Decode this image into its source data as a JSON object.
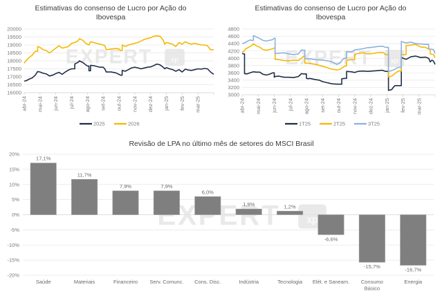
{
  "colors": {
    "series_dark": "#1f2d45",
    "series_yellow": "#f5b800",
    "series_lightblue": "#8db0dd",
    "bar": "#7f7f7f",
    "grid": "#e6e6e6",
    "watermark": "#e4e4e4"
  },
  "watermark": {
    "text": "EXPERT",
    "badge": "xp"
  },
  "chart_data": [
    {
      "type": "line",
      "title": "Estimativas do consenso de Lucro por Ação do Ibovespa",
      "title_lines": [
        "Estimativas do consenso de Lucro por Ação do",
        "Ibovespa"
      ],
      "xlabel": "",
      "ylabel": "",
      "ylim": [
        16000,
        20000
      ],
      "yticks": [
        16000,
        16500,
        17000,
        17500,
        18000,
        18500,
        19000,
        19500,
        20000
      ],
      "ytick_labels": [
        "16000",
        "16500",
        "17000",
        "17500",
        "18000",
        "18500",
        "19000",
        "19500",
        "20000"
      ],
      "xtick_labels": [
        "abr-24",
        "mai-24",
        "jun-24",
        "jul-24",
        "ago-24",
        "set-24",
        "out-24",
        "nov-24",
        "dez-24",
        "jan-25",
        "fev-25",
        "mar-25"
      ],
      "x_range_months": [
        0,
        12
      ],
      "grid": true,
      "legend": "bottom",
      "series": [
        {
          "name": "2025",
          "color_key": "series_dark",
          "x": [
            0,
            0.15,
            0.3,
            0.5,
            0.7,
            0.85,
            1.0,
            1.2,
            1.4,
            1.6,
            1.8,
            2.0,
            2.2,
            2.4,
            2.6,
            2.8,
            3.0,
            3.2,
            3.4,
            3.5,
            3.7,
            3.9,
            4.0,
            4.1,
            4.2,
            4.4,
            4.6,
            4.8,
            5.0,
            5.1,
            5.2,
            5.5,
            5.8,
            6.0,
            6.1,
            6.2,
            6.4,
            6.6,
            6.8,
            7.0,
            7.2,
            7.4,
            7.6,
            7.8,
            8.0,
            8.2,
            8.4,
            8.6,
            8.8,
            8.9,
            9.0,
            9.2,
            9.4,
            9.6,
            9.8,
            10.0,
            10.2,
            10.4,
            10.6,
            10.8,
            11.0,
            11.2,
            11.4,
            11.6,
            11.8,
            12.0
          ],
          "y": [
            16720,
            16760,
            16850,
            16920,
            17100,
            17330,
            17300,
            17220,
            17180,
            17050,
            17100,
            17200,
            17280,
            17150,
            17300,
            17420,
            17500,
            17800,
            17900,
            18000,
            17900,
            17750,
            17680,
            17380,
            17720,
            17700,
            17650,
            17600,
            17600,
            17500,
            17300,
            17300,
            17250,
            17150,
            17100,
            17400,
            17350,
            17450,
            17560,
            17600,
            17560,
            17500,
            17550,
            17600,
            17620,
            17700,
            17800,
            17750,
            17600,
            17500,
            17580,
            17500,
            17450,
            17350,
            17450,
            17300,
            17480,
            17420,
            17400,
            17450,
            17500,
            17480,
            17520,
            17500,
            17300,
            17150
          ]
        },
        {
          "name": "2026",
          "color_key": "series_yellow",
          "x": [
            0,
            0.15,
            0.3,
            0.5,
            0.7,
            0.85,
            1.0,
            1.2,
            1.4,
            1.6,
            1.8,
            2.0,
            2.2,
            2.4,
            2.6,
            2.8,
            3.0,
            3.2,
            3.4,
            3.5,
            3.7,
            3.9,
            4.0,
            4.1,
            4.2,
            4.4,
            4.6,
            4.8,
            5.0,
            5.1,
            5.2,
            5.5,
            5.8,
            6.0,
            6.1,
            6.2,
            6.4,
            6.6,
            6.8,
            7.0,
            7.2,
            7.4,
            7.6,
            7.8,
            8.0,
            8.2,
            8.4,
            8.6,
            8.8,
            8.9,
            9.0,
            9.2,
            9.4,
            9.6,
            9.8,
            10.0,
            10.2,
            10.4,
            10.6,
            10.8,
            11.0,
            11.2,
            11.4,
            11.6,
            11.8,
            12.0
          ],
          "y": [
            17850,
            18050,
            18200,
            18350,
            18600,
            18900,
            18850,
            18700,
            18650,
            18500,
            18650,
            18800,
            18950,
            18800,
            18850,
            18900,
            19100,
            19150,
            19250,
            19400,
            19300,
            19100,
            19050,
            19000,
            19200,
            19150,
            19100,
            19050,
            19000,
            18950,
            18700,
            18750,
            18780,
            18750,
            18650,
            19000,
            18900,
            19000,
            19050,
            19100,
            19150,
            19250,
            19350,
            19400,
            19450,
            19550,
            19580,
            19550,
            19300,
            19050,
            19150,
            19100,
            19050,
            18900,
            19150,
            19050,
            19200,
            19100,
            19050,
            19100,
            19050,
            19000,
            19000,
            18950,
            18700,
            18700
          ]
        }
      ]
    },
    {
      "type": "line",
      "title": "Estimativas do consenso de Lucro por Ação do Ibovespa",
      "title_lines": [
        "Estimativas do consenso de Lucro por Ação do",
        "Ibovespa"
      ],
      "xlabel": "",
      "ylabel": "",
      "ylim": [
        3000,
        4800
      ],
      "yticks": [
        3000,
        3200,
        3400,
        3600,
        3800,
        4000,
        4200,
        4400,
        4600,
        4800
      ],
      "ytick_labels": [
        "3000",
        "3200",
        "3400",
        "3600",
        "3800",
        "4000",
        "4200",
        "4400",
        "4600",
        "4800"
      ],
      "xtick_labels": [
        "abr-24",
        "mai-24",
        "jun-24",
        "jul-24",
        "ago-24",
        "set-24",
        "out-24",
        "nov-24",
        "dez-24",
        "jan-25",
        "fev-25",
        "mar-25"
      ],
      "x_range_months": [
        0,
        12
      ],
      "grid": true,
      "legend": "bottom",
      "series": [
        {
          "name": "1T25",
          "color_key": "series_dark",
          "x": [
            0,
            0.1,
            0.15,
            0.3,
            0.5,
            0.7,
            0.9,
            1.1,
            1.3,
            1.5,
            1.7,
            1.9,
            2.0,
            2.05,
            2.3,
            2.6,
            2.9,
            3.2,
            3.5,
            3.7,
            3.8,
            4.0,
            4.1,
            4.2,
            4.5,
            4.8,
            5.0,
            5.3,
            5.6,
            5.9,
            6.1,
            6.2,
            6.4,
            6.5,
            6.8,
            7.0,
            7.2,
            7.5,
            7.8,
            8.1,
            8.4,
            8.7,
            8.8,
            8.9,
            9.1,
            9.3,
            9.4,
            9.5,
            9.7,
            9.9,
            10.2,
            10.5,
            10.8,
            11.1,
            11.4,
            11.6,
            11.7,
            11.8,
            11.9,
            12.0
          ],
          "y": [
            4130,
            4120,
            3580,
            3570,
            3600,
            3630,
            3620,
            3620,
            3560,
            3540,
            3560,
            3600,
            3480,
            3500,
            3510,
            3480,
            3480,
            3470,
            3500,
            3580,
            3570,
            3450,
            3440,
            3450,
            3420,
            3400,
            3360,
            3330,
            3300,
            3290,
            3290,
            3440,
            3450,
            3640,
            3630,
            3610,
            3640,
            3650,
            3640,
            3650,
            3660,
            3670,
            3660,
            3640,
            3120,
            3140,
            3200,
            3250,
            3250,
            4020,
            3970,
            4040,
            4060,
            4020,
            4030,
            4000,
            3900,
            3950,
            3920,
            3830
          ]
        },
        {
          "name": "2T25",
          "color_key": "series_yellow",
          "x": [
            0,
            0.1,
            0.2,
            0.4,
            0.6,
            0.7,
            0.9,
            1.1,
            1.3,
            1.5,
            1.7,
            1.9,
            2.0,
            2.05,
            2.3,
            2.6,
            2.9,
            3.2,
            3.5,
            3.7,
            3.8,
            3.9,
            4.0,
            4.3,
            4.6,
            5.0,
            5.3,
            5.6,
            5.9,
            6.1,
            6.4,
            6.5,
            6.8,
            7.0,
            7.2,
            7.5,
            7.8,
            8.1,
            8.4,
            8.7,
            8.8,
            8.9,
            9.1,
            9.3,
            9.5,
            9.7,
            9.9,
            10.2,
            10.5,
            10.8,
            11.1,
            11.4,
            11.6,
            11.7,
            11.9,
            12.0
          ],
          "y": [
            4170,
            4180,
            4250,
            4300,
            4350,
            4390,
            4340,
            4300,
            4240,
            4220,
            4240,
            4260,
            4280,
            3970,
            3960,
            3940,
            3930,
            3950,
            3940,
            4000,
            4050,
            3860,
            3870,
            3850,
            3830,
            3780,
            3740,
            3700,
            3680,
            3700,
            3790,
            3950,
            3960,
            4100,
            4130,
            4150,
            4120,
            4130,
            4150,
            4160,
            4150,
            4100,
            3490,
            3510,
            3580,
            3650,
            4100,
            4350,
            4360,
            4380,
            4310,
            4300,
            4250,
            4120,
            4100,
            4020
          ]
        },
        {
          "name": "3T25",
          "color_key": "series_lightblue",
          "x": [
            0,
            0.15,
            0.3,
            0.5,
            0.6,
            0.7,
            0.9,
            1.1,
            1.3,
            1.5,
            1.7,
            1.9,
            2.0,
            2.05,
            2.3,
            2.6,
            2.9,
            3.2,
            3.5,
            3.7,
            3.8,
            3.9,
            4.0,
            4.3,
            4.6,
            5.0,
            5.3,
            5.6,
            5.8,
            5.9,
            6.1,
            6.3,
            6.4,
            6.5,
            6.8,
            7.0,
            7.2,
            7.5,
            7.8,
            8.1,
            8.4,
            8.7,
            8.8,
            8.9,
            9.1,
            9.3,
            9.5,
            9.7,
            9.9,
            10.2,
            10.5,
            10.8,
            11.1,
            11.4,
            11.6,
            11.7,
            11.9,
            12.0
          ],
          "y": [
            4400,
            4420,
            4460,
            4500,
            4490,
            4620,
            4580,
            4540,
            4490,
            4470,
            4490,
            4510,
            4550,
            4130,
            4140,
            4150,
            4120,
            4100,
            4120,
            4230,
            4220,
            4000,
            3990,
            3980,
            3960,
            3950,
            3930,
            3900,
            3850,
            3830,
            3880,
            3990,
            4000,
            4180,
            4170,
            4230,
            4240,
            4260,
            4290,
            4300,
            4320,
            4330,
            4320,
            4300,
            3640,
            3660,
            3700,
            3750,
            4460,
            4420,
            4440,
            4400,
            4390,
            4380,
            4260,
            4250,
            4240,
            4130
          ]
        }
      ]
    },
    {
      "type": "bar",
      "title": "Revisão de LPA no último mês de setores do MSCI Brasil",
      "xlabel": "",
      "ylabel": "",
      "ylim": [
        -20,
        20
      ],
      "yticks": [
        -20,
        -15,
        -10,
        -5,
        0,
        5,
        10,
        15,
        20
      ],
      "ytick_labels": [
        "-20%",
        "-15%",
        "-10%",
        "-5%",
        "0%",
        "5%",
        "10%",
        "15%",
        "20%"
      ],
      "grid": true,
      "legend": "none",
      "categories": [
        "Saúde",
        "Materiais",
        "Financeiro",
        "Serv. Comunc.",
        "Cons. Disc.",
        "Indústria",
        "Tecnologia",
        "Elét. e Saneam.",
        "Consumo Básico",
        "Energia"
      ],
      "category_lines": [
        [
          "Saúde"
        ],
        [
          "Materiais"
        ],
        [
          "Financeiro"
        ],
        [
          "Serv. Comunc."
        ],
        [
          "Cons. Disc."
        ],
        [
          "Indústria"
        ],
        [
          "Tecnologia"
        ],
        [
          "Elét. e Saneam."
        ],
        [
          "Consumo",
          "Básico"
        ],
        [
          "Energia"
        ]
      ],
      "values": [
        17.1,
        11.7,
        7.9,
        7.9,
        6.0,
        1.9,
        1.2,
        -6.6,
        -15.7,
        -16.7
      ],
      "data_labels": [
        "17,1%",
        "11,7%",
        "7,9%",
        "7,9%",
        "6,0%",
        "1,9%",
        "1,2%",
        "-6,6%",
        "-15,7%",
        "-16,7%"
      ]
    }
  ]
}
